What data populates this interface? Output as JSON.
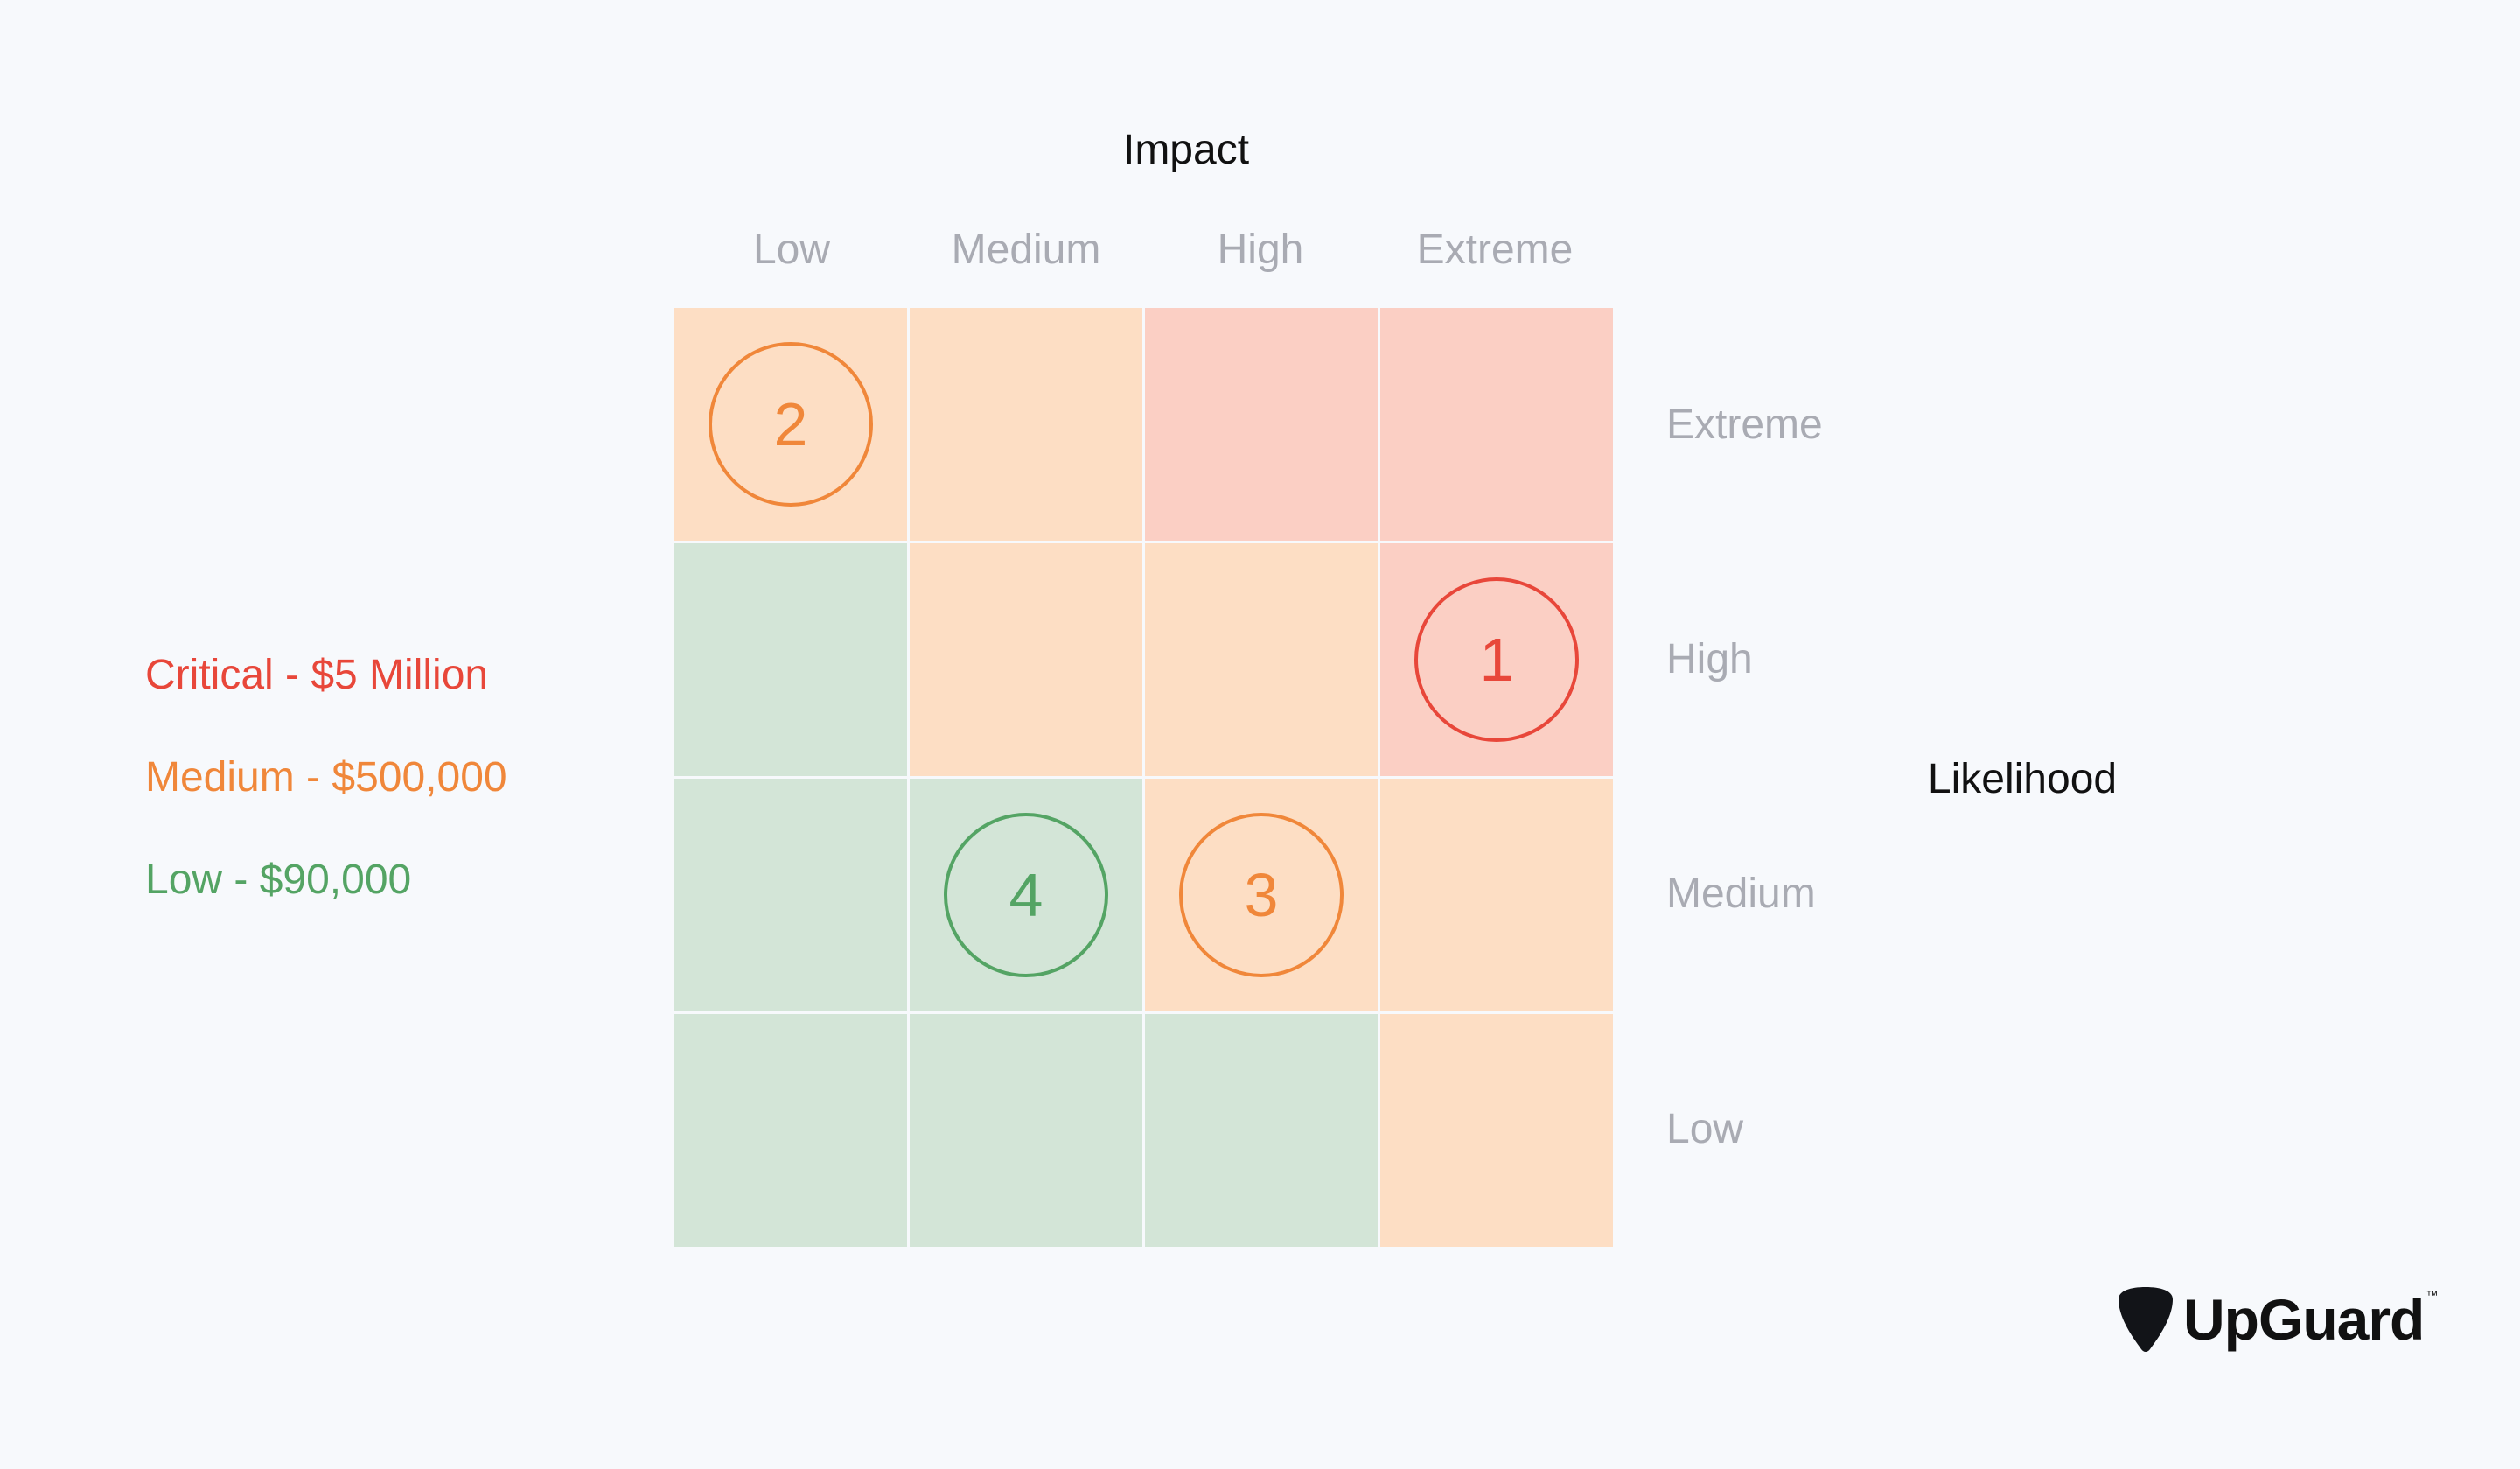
{
  "impact_title": "Impact",
  "likelihood_title": "Likelihood",
  "impact_levels": [
    "Low",
    "Medium",
    "High",
    "Extreme"
  ],
  "likelihood_levels": [
    "Extreme",
    "High",
    "Medium",
    "Low"
  ],
  "colors": {
    "green_cell": "#d3e5d7",
    "orange_cell": "#fddec4",
    "red_cell": "#fbcfc4",
    "critical": "#e8473a",
    "medium": "#f0873a",
    "low": "#54a464"
  },
  "grid": [
    [
      "orange",
      "orange",
      "red",
      "red"
    ],
    [
      "green",
      "orange",
      "orange",
      "red"
    ],
    [
      "green",
      "green",
      "orange",
      "orange"
    ],
    [
      "green",
      "green",
      "green",
      "orange"
    ]
  ],
  "markers": [
    {
      "label": "2",
      "row": 0,
      "col": 0,
      "severity": "medium"
    },
    {
      "label": "1",
      "row": 1,
      "col": 3,
      "severity": "critical"
    },
    {
      "label": "4",
      "row": 2,
      "col": 1,
      "severity": "low"
    },
    {
      "label": "3",
      "row": 2,
      "col": 2,
      "severity": "medium"
    }
  ],
  "legend": [
    {
      "text": "Critical - $5 Million",
      "severity": "critical"
    },
    {
      "text": "Medium - $500,000",
      "severity": "medium"
    },
    {
      "text": "Low - $90,000",
      "severity": "low"
    }
  ],
  "logo": {
    "text": "UpGuard",
    "tm": "™"
  }
}
